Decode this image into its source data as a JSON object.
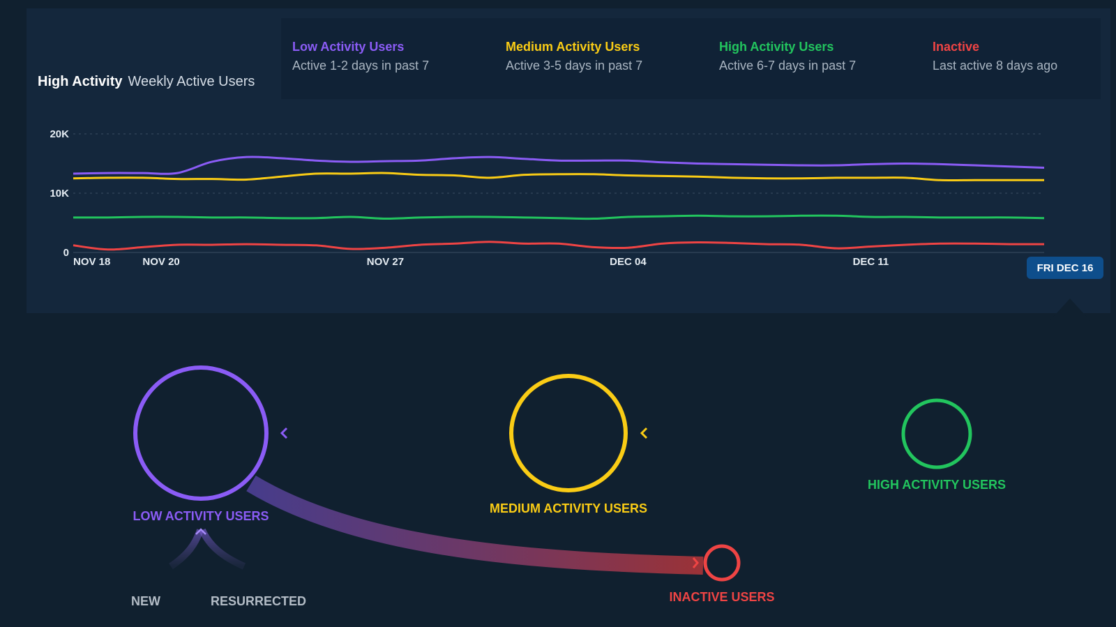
{
  "header": {
    "title_bold": "High Activity",
    "title_rest": "Weekly Active Users"
  },
  "legend": [
    {
      "name": "Low Activity Users",
      "desc": "Active 1-2 days in past 7",
      "color": "#8b5cf6"
    },
    {
      "name": "Medium Activity Users",
      "desc": "Active 3-5 days in past 7",
      "color": "#facc15"
    },
    {
      "name": "High Activity Users",
      "desc": "Active 6-7 days in past 7",
      "color": "#22c55e"
    },
    {
      "name": "Inactive",
      "desc": "Last active 8 days ago",
      "color": "#ef4444"
    }
  ],
  "selected_date": "FRI DEC 16",
  "chart_data": {
    "type": "line",
    "x": [
      "Nov 18",
      "Nov 19",
      "Nov 20",
      "Nov 21",
      "Nov 22",
      "Nov 23",
      "Nov 24",
      "Nov 25",
      "Nov 26",
      "Nov 27",
      "Nov 28",
      "Nov 29",
      "Nov 30",
      "Dec 01",
      "Dec 02",
      "Dec 03",
      "Dec 04",
      "Dec 05",
      "Dec 06",
      "Dec 07",
      "Dec 08",
      "Dec 09",
      "Dec 10",
      "Dec 11",
      "Dec 12",
      "Dec 13",
      "Dec 14",
      "Dec 15",
      "Dec 16"
    ],
    "x_tick_labels": [
      "NOV 18",
      "NOV 20",
      "NOV 27",
      "DEC 04",
      "DEC 11"
    ],
    "y_tick_labels": [
      "0",
      "10K",
      "20K"
    ],
    "ylim": [
      0,
      20000
    ],
    "grid": true,
    "series": [
      {
        "name": "Low Activity Users",
        "color": "#8b5cf6",
        "values": [
          13300,
          13400,
          13400,
          13400,
          15300,
          16100,
          15900,
          15500,
          15300,
          15400,
          15500,
          15900,
          16100,
          15800,
          15500,
          15500,
          15500,
          15200,
          15000,
          14900,
          14800,
          14700,
          14700,
          14900,
          15000,
          14900,
          14700,
          14500,
          14300
        ]
      },
      {
        "name": "Medium Activity Users",
        "color": "#facc15",
        "values": [
          12500,
          12600,
          12600,
          12400,
          12400,
          12300,
          12800,
          13300,
          13300,
          13400,
          13100,
          13000,
          12600,
          13100,
          13200,
          13200,
          13000,
          12900,
          12800,
          12600,
          12500,
          12500,
          12600,
          12600,
          12600,
          12200,
          12200,
          12200,
          12200
        ]
      },
      {
        "name": "High Activity Users",
        "color": "#22c55e",
        "values": [
          5900,
          5900,
          6000,
          6000,
          5900,
          5900,
          5800,
          5800,
          6000,
          5700,
          5900,
          6000,
          6000,
          5900,
          5800,
          5700,
          6000,
          6100,
          6200,
          6100,
          6100,
          6200,
          6200,
          6000,
          6000,
          5900,
          5900,
          5900,
          5800
        ]
      },
      {
        "name": "Inactive",
        "color": "#ef4444",
        "values": [
          1200,
          500,
          900,
          1300,
          1300,
          1400,
          1300,
          1200,
          600,
          800,
          1300,
          1500,
          1800,
          1500,
          1500,
          900,
          800,
          1500,
          1700,
          1600,
          1400,
          1300,
          700,
          1000,
          1300,
          1500,
          1500,
          1400,
          1400
        ]
      }
    ]
  },
  "flow": {
    "low_label": "LOW ACTIVITY USERS",
    "medium_label": "MEDIUM ACTIVITY USERS",
    "high_label": "HIGH ACTIVITY USERS",
    "inactive_label": "INACTIVE USERS",
    "new_label": "NEW",
    "resurrected_label": "RESURRECTED"
  }
}
